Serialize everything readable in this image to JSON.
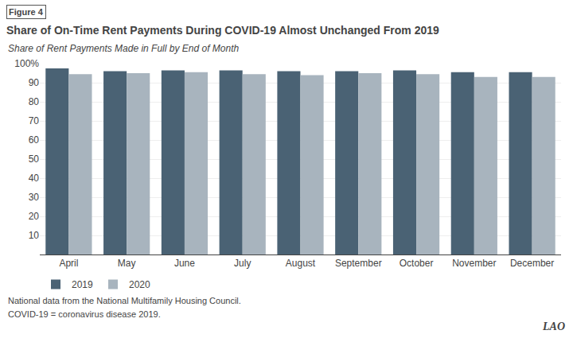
{
  "chart_data": {
    "type": "bar",
    "title": "Share of On-Time Rent Payments During COVID-19 Almost Unchanged From 2019",
    "subtitle": "Share of Rent Payments Made in Full by End of Month",
    "annotations": [
      "Figure 4",
      "National data from the National Multifamily Housing Council.",
      "COVID-19 = coronavirus disease 2019.",
      "LAO"
    ],
    "categories": [
      "April",
      "May",
      "June",
      "July",
      "August",
      "September",
      "October",
      "November",
      "December"
    ],
    "series": [
      {
        "name": "2019",
        "color": "#4a6274",
        "values": [
          97.5,
          96.0,
          96.5,
          96.5,
          96.0,
          96.0,
          96.5,
          95.5,
          95.5
        ]
      },
      {
        "name": "2020",
        "color": "#a8b4be",
        "values": [
          94.5,
          95.0,
          95.5,
          94.5,
          94.0,
          95.0,
          94.5,
          93.0,
          93.0
        ]
      }
    ],
    "ylim": [
      0,
      100
    ],
    "yticks": [
      10,
      20,
      30,
      40,
      50,
      60,
      70,
      80,
      90,
      {
        "value": 100,
        "label": "100%"
      }
    ],
    "grid": true,
    "legend": "lower left"
  }
}
